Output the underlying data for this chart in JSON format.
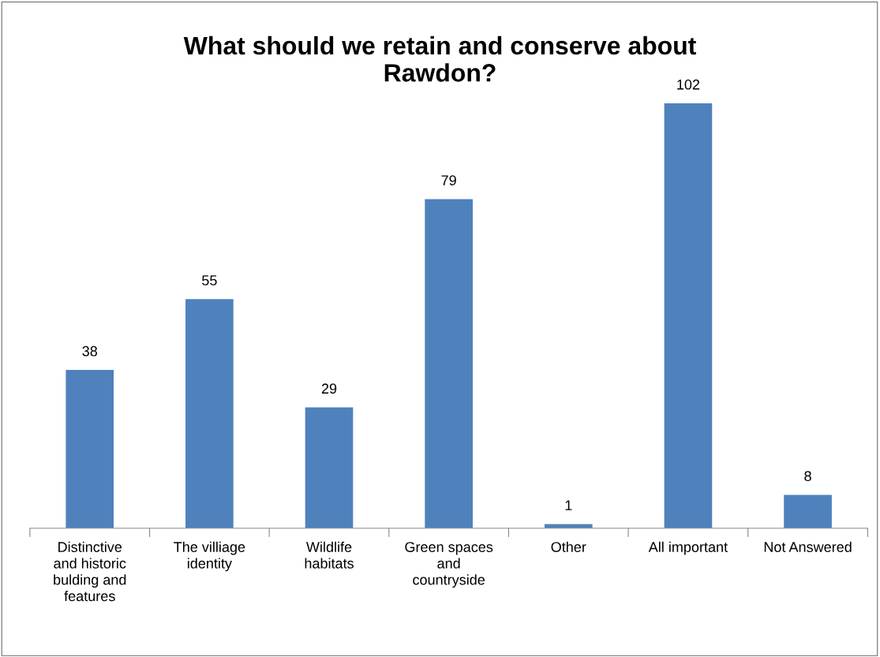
{
  "chart_data": {
    "type": "bar",
    "title": "What should we retain and conserve about Rawdon?",
    "categories": [
      "Distinctive and historic bulding and features",
      "The villiage identity",
      "Wildlife habitats",
      "Green spaces and countryside",
      "Other",
      "All important",
      "Not Answered"
    ],
    "values": [
      38,
      55,
      29,
      79,
      1,
      102,
      8
    ],
    "color": "#4f81bd",
    "data_labels": true,
    "tick_labels": "x",
    "grid": false,
    "legend": false
  }
}
